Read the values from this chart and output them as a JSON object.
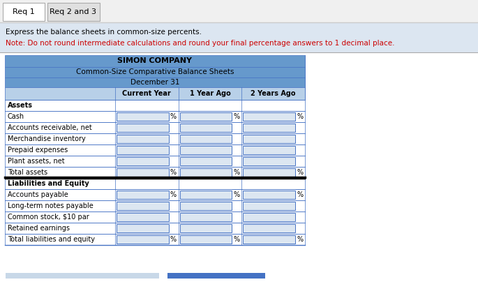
{
  "tab1": "Req 1",
  "tab2": "Req 2 and 3",
  "instruction_line1": "Express the balance sheets in common-size percents.",
  "instruction_line2": "Note: Do not round intermediate calculations and round your final percentage answers to 1 decimal place.",
  "company": "SIMON COMPANY",
  "subtitle1": "Common-Size Comparative Balance Sheets",
  "subtitle2": "December 31",
  "col_headers": [
    "Current Year",
    "1 Year Ago",
    "2 Years Ago"
  ],
  "rows": [
    {
      "label": "Assets",
      "bold": true,
      "has_inputs": false,
      "show_pct": false,
      "double_border_bottom": false
    },
    {
      "label": "Cash",
      "bold": false,
      "has_inputs": true,
      "show_pct": true,
      "double_border_bottom": false
    },
    {
      "label": "Accounts receivable, net",
      "bold": false,
      "has_inputs": true,
      "show_pct": false,
      "double_border_bottom": false
    },
    {
      "label": "Merchandise inventory",
      "bold": false,
      "has_inputs": true,
      "show_pct": false,
      "double_border_bottom": false
    },
    {
      "label": "Prepaid expenses",
      "bold": false,
      "has_inputs": true,
      "show_pct": false,
      "double_border_bottom": false
    },
    {
      "label": "Plant assets, net",
      "bold": false,
      "has_inputs": true,
      "show_pct": false,
      "double_border_bottom": false
    },
    {
      "label": "Total assets",
      "bold": false,
      "has_inputs": true,
      "show_pct": true,
      "double_border_bottom": true
    },
    {
      "label": "Liabilities and Equity",
      "bold": true,
      "has_inputs": false,
      "show_pct": false,
      "double_border_bottom": false
    },
    {
      "label": "Accounts payable",
      "bold": false,
      "has_inputs": true,
      "show_pct": true,
      "double_border_bottom": false
    },
    {
      "label": "Long-term notes payable",
      "bold": false,
      "has_inputs": true,
      "show_pct": false,
      "double_border_bottom": false
    },
    {
      "label": "Common stock, $10 par",
      "bold": false,
      "has_inputs": true,
      "show_pct": false,
      "double_border_bottom": false
    },
    {
      "label": "Retained earnings",
      "bold": false,
      "has_inputs": true,
      "show_pct": false,
      "double_border_bottom": false
    },
    {
      "label": "Total liabilities and equity",
      "bold": false,
      "has_inputs": true,
      "show_pct": true,
      "double_border_bottom": false
    }
  ],
  "header_bg": "#6699cc",
  "col_header_bg": "#b8d0e8",
  "input_box_color": "#dce6f1",
  "input_border_color": "#4472c4",
  "tab_active_bg": "#ffffff",
  "tab_inactive_bg": "#e0e0e0",
  "instruction_bg": "#dce6f1",
  "note_color": "#cc0000",
  "text_color": "#000000",
  "table_border_color": "#4472c4",
  "double_border_color": "#000000",
  "fig_bg": "#ffffff",
  "scrollbar1_color": "#c8d8e8",
  "scrollbar2_color": "#4472c4"
}
